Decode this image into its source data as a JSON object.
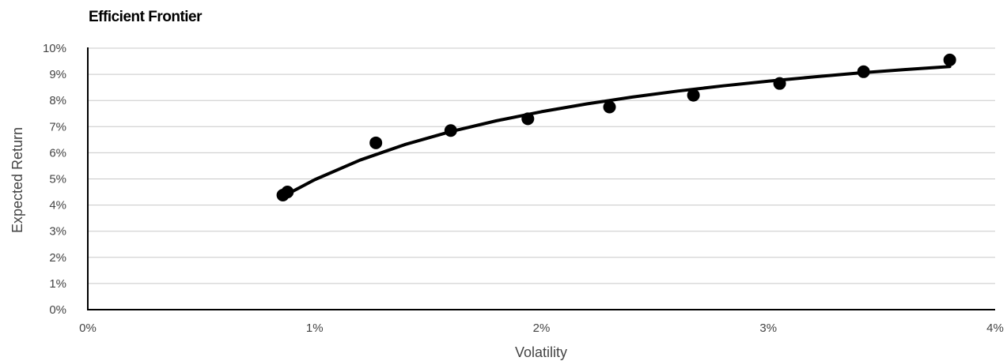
{
  "chart_data": {
    "type": "scatter",
    "title": "Efficient Frontier",
    "xlabel": "Volatility",
    "ylabel": "Expected Return",
    "xlim": [
      0,
      4
    ],
    "ylim": [
      0,
      10
    ],
    "x_ticks": [
      "0%",
      "1%",
      "2%",
      "3%",
      "4%"
    ],
    "y_ticks": [
      "0%",
      "1%",
      "2%",
      "3%",
      "4%",
      "5%",
      "6%",
      "7%",
      "8%",
      "9%",
      "10%"
    ],
    "grid": "horizontal",
    "legend": "none",
    "series": [
      {
        "kind": "points",
        "x": [
          0.86,
          0.88,
          1.27,
          1.6,
          1.94,
          2.3,
          2.67,
          3.05,
          3.42,
          3.8
        ],
        "y": [
          4.38,
          4.5,
          6.38,
          6.85,
          7.3,
          7.75,
          8.2,
          8.65,
          9.1,
          9.55
        ]
      },
      {
        "kind": "line",
        "x": [
          0.86,
          1.0,
          1.2,
          1.4,
          1.6,
          1.8,
          2.0,
          2.2,
          2.4,
          2.6,
          2.8,
          3.0,
          3.2,
          3.4,
          3.6,
          3.8
        ],
        "y": [
          4.33,
          4.97,
          5.72,
          6.32,
          6.81,
          7.22,
          7.57,
          7.87,
          8.13,
          8.36,
          8.56,
          8.74,
          8.9,
          9.05,
          9.18,
          9.3
        ]
      }
    ],
    "colors": {
      "marker": "#000000",
      "line": "#000000",
      "grid": "#c8c8c8",
      "axis": "#000000"
    }
  }
}
